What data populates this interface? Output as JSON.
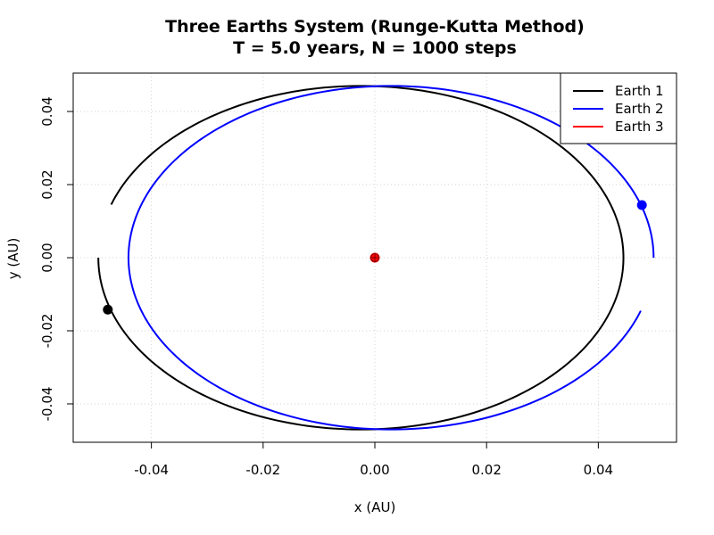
{
  "chart_data": {
    "type": "line",
    "title": "Three Earths System (Runge-Kutta Method)",
    "subtitle": "T = 5.0 years, N = 1000 steps",
    "xlabel": "x (AU)",
    "ylabel": "y (AU)",
    "xlim": [
      -0.054,
      0.054
    ],
    "ylim": [
      -0.0505,
      0.0505
    ],
    "x_ticks": [
      -0.04,
      -0.02,
      0.0,
      0.02,
      0.04
    ],
    "x_tick_labels": [
      "-0.04",
      "-0.02",
      "0.00",
      "0.02",
      "0.04"
    ],
    "y_ticks": [
      -0.04,
      -0.02,
      0.0,
      0.02,
      0.04
    ],
    "y_tick_labels": [
      "-0.04",
      "-0.02",
      "0.00",
      "0.02",
      "0.04"
    ],
    "grid": true,
    "legend_position": "top-right",
    "series": [
      {
        "name": "Earth 1",
        "color": "#000000",
        "orbit": {
          "cx": -0.0025,
          "cy": 0.0,
          "rx": 0.047,
          "ry": 0.047
        },
        "path_start_deg": 180,
        "path_end_deg": 522,
        "final_position": [
          -0.0478,
          -0.0142
        ]
      },
      {
        "name": "Earth 2",
        "color": "#0000ff",
        "orbit": {
          "cx": 0.0029,
          "cy": 0.0,
          "rx": 0.047,
          "ry": 0.047
        },
        "path_start_deg": 0,
        "path_end_deg": 342,
        "final_position": [
          0.0478,
          0.0144
        ]
      },
      {
        "name": "Earth 3",
        "color": "#ff0000",
        "orbit": null,
        "final_position": [
          0.0,
          0.0
        ]
      }
    ]
  }
}
